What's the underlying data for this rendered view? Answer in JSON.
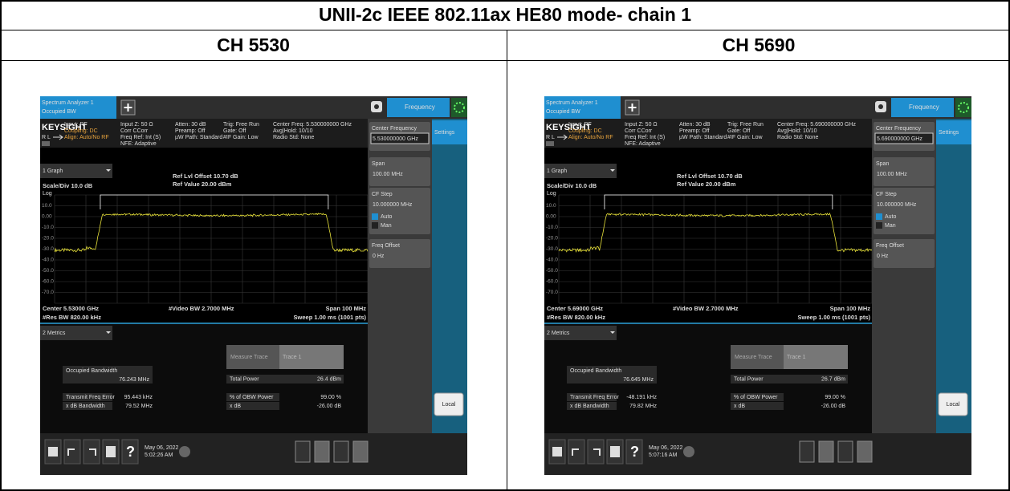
{
  "title": "UNII-2c IEEE 802.11ax HE80 mode- chain 1",
  "columns": [
    {
      "header": "CH 5530",
      "screen": {
        "tab": [
          "Spectrum Analyzer 1",
          "Occupied BW"
        ],
        "brand": "KEYSIGHT",
        "status": "R L",
        "info": [
          [
            "Input: RF",
            "Coupling: DC",
            "Align: Auto/No RF"
          ],
          [
            "Input Z: 50 Ω",
            "Corr CCorr",
            "Freq Ref: Int (S)",
            "NFE: Adaptive"
          ],
          [
            "Atten: 30 dB",
            "Preamp: Off",
            "µW Path: Standard"
          ],
          [
            "Trig: Free Run",
            "Gate: Off",
            "#IF Gain: Low"
          ],
          [
            "Center Freq: 5.530000000 GHz",
            "Avg|Hold: 10/10",
            "Radio Std: None"
          ]
        ],
        "menu": "Frequency",
        "settings": "Settings",
        "panel": [
          {
            "label": "Center Frequency",
            "value": "5.530000000 GHz"
          },
          {
            "label": "Span",
            "value": "100.00 MHz"
          },
          {
            "label": "CF Step",
            "value": "10.000000 MHz",
            "options": [
              "Auto",
              "Man"
            ]
          },
          {
            "label": "Freq Offset",
            "value": "0 Hz"
          }
        ],
        "local": "Local",
        "graph": {
          "name": "1 Graph",
          "ref_offset": "Ref Lvl Offset 10.70 dB",
          "ref_value": "Ref Value 20.00 dBm",
          "scale": "Scale/Div 10.0 dB",
          "log": "Log",
          "y_labels": [
            "10.0",
            "0.00",
            "-10.0",
            "-20.0",
            "-30.0",
            "-40.0",
            "-50.0",
            "-60.0",
            "-70.0"
          ],
          "center": "Center 5.53000 GHz",
          "vbw": "#Video BW 2.7000 MHz",
          "span": "Span 100 MHz",
          "rbw": "#Res BW 820.00 kHz",
          "sweep": "Sweep 1.00 ms (1001 pts)"
        },
        "metrics": {
          "name": "2 Metrics",
          "obw_label": "Occupied Bandwidth",
          "obw_value": "76.243 MHz",
          "measure_trace": "Measure Trace",
          "trace": "Trace 1",
          "total_power": [
            "Total Power",
            "26.4 dBm"
          ],
          "left_rows": [
            [
              "Transmit Freq Error",
              "95.443 kHz"
            ],
            [
              "x dB Bandwidth",
              "79.52 MHz"
            ]
          ],
          "right_rows": [
            [
              "% of OBW Power",
              "99.00 %"
            ],
            [
              "x dB",
              "-26.00 dB"
            ]
          ]
        },
        "taskbar": {
          "date": "May 06, 2022",
          "time": "5:02:26 AM"
        }
      }
    },
    {
      "header": "CH 5690",
      "screen": {
        "tab": [
          "Spectrum Analyzer 1",
          "Occupied BW"
        ],
        "brand": "KEYSIGHT",
        "status": "R L",
        "info": [
          [
            "Input: RF",
            "Coupling: DC",
            "Align: Auto/No RF"
          ],
          [
            "Input Z: 50 Ω",
            "Corr CCorr",
            "Freq Ref: Int (S)",
            "NFE: Adaptive"
          ],
          [
            "Atten: 30 dB",
            "Preamp: Off",
            "µW Path: Standard"
          ],
          [
            "Trig: Free Run",
            "Gate: Off",
            "#IF Gain: Low"
          ],
          [
            "Center Freq: 5.690000000 GHz",
            "Avg|Hold: 10/10",
            "Radio Std: None"
          ]
        ],
        "menu": "Frequency",
        "settings": "Settings",
        "panel": [
          {
            "label": "Center Frequency",
            "value": "5.690000000 GHz"
          },
          {
            "label": "Span",
            "value": "100.00 MHz"
          },
          {
            "label": "CF Step",
            "value": "10.000000 MHz",
            "options": [
              "Auto",
              "Man"
            ]
          },
          {
            "label": "Freq Offset",
            "value": "0 Hz"
          }
        ],
        "local": "Local",
        "graph": {
          "name": "1 Graph",
          "ref_offset": "Ref Lvl Offset 10.70 dB",
          "ref_value": "Ref Value 20.00 dBm",
          "scale": "Scale/Div 10.0 dB",
          "log": "Log",
          "y_labels": [
            "10.0",
            "0.00",
            "-10.0",
            "-20.0",
            "-30.0",
            "-40.0",
            "-50.0",
            "-60.0",
            "-70.0"
          ],
          "center": "Center 5.69000 GHz",
          "vbw": "#Video BW 2.7000 MHz",
          "span": "Span 100 MHz",
          "rbw": "#Res BW 820.00 kHz",
          "sweep": "Sweep 1.00 ms (1001 pts)"
        },
        "metrics": {
          "name": "2 Metrics",
          "obw_label": "Occupied Bandwidth",
          "obw_value": "76.645 MHz",
          "measure_trace": "Measure Trace",
          "trace": "Trace 1",
          "total_power": [
            "Total Power",
            "26.7 dBm"
          ],
          "left_rows": [
            [
              "Transmit Freq Error",
              "-48.191 kHz"
            ],
            [
              "x dB Bandwidth",
              "79.82 MHz"
            ]
          ],
          "right_rows": [
            [
              "% of OBW Power",
              "99.00 %"
            ],
            [
              "x dB",
              "-26.00 dB"
            ]
          ]
        },
        "taskbar": {
          "date": "May 06, 2022",
          "time": "5:07:16 AM"
        }
      }
    }
  ]
}
